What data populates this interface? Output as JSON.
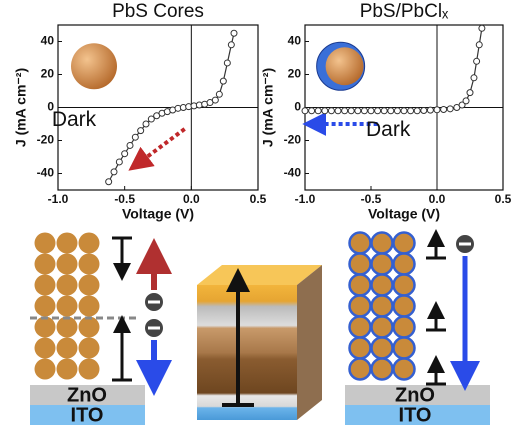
{
  "chart_data": [
    {
      "type": "line",
      "title": "PbS Cores",
      "x_label": "Voltage (V)",
      "y_label": "J (mA cm⁻²)",
      "annotation": "Dark",
      "color": "#333333",
      "x": [
        -0.62,
        -0.58,
        -0.54,
        -0.5,
        -0.46,
        -0.42,
        -0.38,
        -0.34,
        -0.3,
        -0.26,
        -0.22,
        -0.18,
        -0.14,
        -0.1,
        -0.06,
        -0.02,
        0.02,
        0.06,
        0.1,
        0.14,
        0.18,
        0.21,
        0.24,
        0.27,
        0.3,
        0.32
      ],
      "values": [
        -45,
        -39,
        -33,
        -28,
        -23,
        -18,
        -14,
        -10,
        -7,
        -5,
        -3.5,
        -2.5,
        -1.5,
        -0.5,
        0,
        0.5,
        1,
        1.5,
        2,
        3,
        4.5,
        8,
        16,
        27,
        38,
        45
      ],
      "xlim": [
        -1,
        0.5
      ],
      "ylim": [
        -50,
        50
      ],
      "xticks": [
        {
          "value": -1,
          "label": "-1.0"
        },
        -0.5,
        {
          "value": 0,
          "label": "0.0"
        },
        0.5
      ],
      "yticks": [
        -40,
        -20,
        0,
        20,
        40
      ]
    },
    {
      "type": "line",
      "title": "PbS/PbClₓ",
      "x_label": "Voltage (V)",
      "y_label": "J (mA cm⁻²)",
      "annotation": "Dark",
      "color": "#333333",
      "x": [
        -1,
        -0.95,
        -0.9,
        -0.85,
        -0.8,
        -0.75,
        -0.7,
        -0.65,
        -0.6,
        -0.55,
        -0.5,
        -0.45,
        -0.4,
        -0.35,
        -0.3,
        -0.25,
        -0.2,
        -0.15,
        -0.1,
        -0.05,
        0,
        0.05,
        0.1,
        0.15,
        0.19,
        0.22,
        0.25,
        0.28,
        0.3,
        0.32,
        0.34
      ],
      "values": [
        -2,
        -2,
        -2,
        -2,
        -2,
        -2,
        -2,
        -2,
        -2,
        -2,
        -2,
        -2,
        -2,
        -2,
        -2,
        -2,
        -2,
        -2,
        -1.8,
        -1.6,
        -1.4,
        -1.2,
        -0.8,
        0,
        1.5,
        4,
        9,
        18,
        28,
        38,
        48
      ],
      "xlim": [
        -1,
        0.5
      ],
      "ylim": [
        -50,
        50
      ],
      "xticks": [
        {
          "value": -1,
          "label": "-1.0"
        },
        -0.5,
        {
          "value": 0,
          "label": "0.0"
        },
        0.5
      ],
      "yticks": [
        -40,
        -20,
        0,
        20,
        40
      ]
    }
  ],
  "diagram": {
    "left": {
      "top": "ZnO",
      "bottom": "ITO"
    },
    "right": {
      "top": "ZnO",
      "bottom": "ITO"
    }
  }
}
